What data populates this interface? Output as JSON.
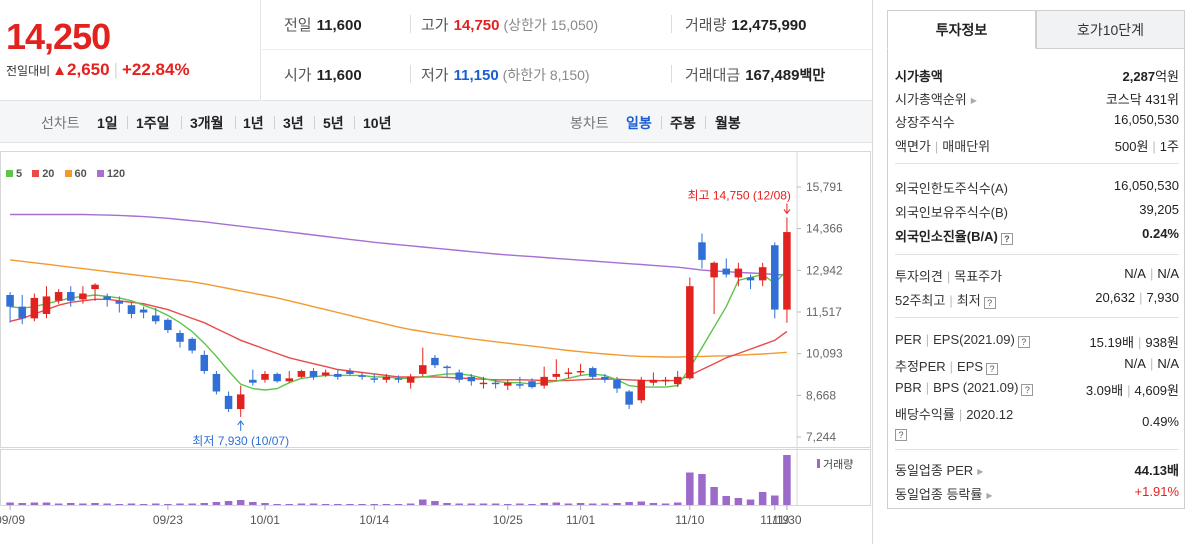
{
  "price": {
    "current": "14,250",
    "diff_label": "전일대비",
    "diff_arrow": "▲",
    "diff_value": "2,650",
    "diff_pct": "+22.84%"
  },
  "summary": {
    "prev_label": "전일",
    "prev_value": "11,600",
    "high_label": "고가",
    "high_value": "14,750",
    "upper_limit": "(상한가 15,050)",
    "volume_label": "거래량",
    "volume_value": "12,475,990",
    "open_label": "시가",
    "open_value": "11,600",
    "low_label": "저가",
    "low_value": "11,150",
    "lower_limit": "(하한가 8,150)",
    "amount_label": "거래대금",
    "amount_value": "167,489",
    "amount_unit": "백만"
  },
  "period_bar": {
    "line_label": "선차트",
    "periods": [
      "1일",
      "1주일",
      "3개월",
      "1년",
      "3년",
      "5년",
      "10년"
    ],
    "candle_label": "봉차트",
    "candles": [
      "일봉",
      "주봉",
      "월봉"
    ],
    "active_candle": "일봉"
  },
  "chart_data": {
    "type": "candlestick",
    "legend": [
      {
        "name": "5",
        "color": "#5ec44a"
      },
      {
        "name": "20",
        "color": "#ea4a4a"
      },
      {
        "name": "60",
        "color": "#f29a2e"
      },
      {
        "name": "120",
        "color": "#a56fd3"
      }
    ],
    "y_ticks": [
      "15,791",
      "14,366",
      "12,942",
      "11,517",
      "10,093",
      "8,668",
      "7,244"
    ],
    "y_range": [
      7244,
      15791
    ],
    "x_ticks": [
      "09/09",
      "09/23",
      "10/01",
      "10/14",
      "10/25",
      "11/01",
      "11/10",
      "11/19",
      "11/30"
    ],
    "high_annotation": "최고 14,750 (12/08)",
    "low_annotation": "최저 7,930 (10/07)",
    "volume_label": "거래량",
    "up_color": "#e2221f",
    "down_color": "#2f6fd6",
    "volume_color": "#9c6bc9",
    "candles": [
      [
        12100,
        11700,
        12200,
        11150
      ],
      [
        11700,
        11300,
        12100,
        11100
      ],
      [
        11300,
        12000,
        12150,
        11200
      ],
      [
        11450,
        12050,
        12400,
        11300
      ],
      [
        11900,
        12200,
        12300,
        11800
      ],
      [
        12200,
        11900,
        12400,
        11700
      ],
      [
        11950,
        12150,
        12400,
        11800
      ],
      [
        12300,
        12450,
        12500,
        11900
      ],
      [
        12050,
        11950,
        12150,
        11700
      ],
      [
        11900,
        11800,
        12050,
        11500
      ],
      [
        11750,
        11450,
        11850,
        11300
      ],
      [
        11600,
        11500,
        11700,
        11300
      ],
      [
        11400,
        11200,
        11650,
        11100
      ],
      [
        11250,
        10900,
        11300,
        10800
      ],
      [
        10800,
        10500,
        10900,
        10300
      ],
      [
        10600,
        10200,
        10650,
        10100
      ],
      [
        10050,
        9500,
        10200,
        9400
      ],
      [
        9400,
        8800,
        9500,
        8700
      ],
      [
        8650,
        8200,
        8800,
        8100
      ],
      [
        8200,
        8700,
        9000,
        7930
      ],
      [
        9200,
        9100,
        9550,
        9000
      ],
      [
        9200,
        9400,
        9500,
        9100
      ],
      [
        9400,
        9150,
        9450,
        9100
      ],
      [
        9150,
        9250,
        9500,
        9100
      ],
      [
        9300,
        9500,
        9550,
        9250
      ],
      [
        9500,
        9300,
        9600,
        9200
      ],
      [
        9350,
        9450,
        9550,
        9300
      ],
      [
        9400,
        9300,
        9550,
        9200
      ],
      [
        9500,
        9400,
        9600,
        9350
      ],
      [
        9350,
        9300,
        9450,
        9200
      ],
      [
        9250,
        9200,
        9400,
        9100
      ],
      [
        9200,
        9300,
        9400,
        9100
      ],
      [
        9250,
        9200,
        9350,
        9100
      ],
      [
        9100,
        9300,
        9400,
        8900
      ],
      [
        9400,
        9700,
        10300,
        9300
      ],
      [
        9950,
        9700,
        10050,
        9600
      ],
      [
        9650,
        9600,
        9700,
        9300
      ],
      [
        9450,
        9200,
        9550,
        9100
      ],
      [
        9300,
        9150,
        9400,
        9000
      ],
      [
        9050,
        9100,
        9300,
        8900
      ],
      [
        9100,
        9050,
        9200,
        8900
      ],
      [
        9000,
        9100,
        9200,
        8850
      ],
      [
        9050,
        9000,
        9300,
        8900
      ],
      [
        9150,
        8950,
        9250,
        8900
      ],
      [
        9000,
        9300,
        9650,
        8900
      ],
      [
        9300,
        9400,
        9900,
        9200
      ],
      [
        9400,
        9450,
        9600,
        9250
      ],
      [
        9450,
        9500,
        9750,
        9350
      ],
      [
        9600,
        9300,
        9650,
        9200
      ],
      [
        9300,
        9200,
        9400,
        9100
      ],
      [
        9200,
        8900,
        9300,
        8750
      ],
      [
        8800,
        8350,
        8850,
        8200
      ],
      [
        8500,
        9200,
        9300,
        8400
      ],
      [
        9100,
        9200,
        9450,
        9000
      ],
      [
        9150,
        9200,
        9300,
        9000
      ],
      [
        9050,
        9300,
        9500,
        8950
      ],
      [
        9250,
        12400,
        12700,
        9200
      ],
      [
        13900,
        13300,
        14200,
        13000
      ],
      [
        12700,
        13200,
        13250,
        11450
      ],
      [
        13000,
        12800,
        13350,
        12700
      ],
      [
        12700,
        13000,
        13200,
        12400
      ],
      [
        12700,
        12600,
        12800,
        12300
      ],
      [
        12600,
        13050,
        13200,
        12400
      ],
      [
        13800,
        11600,
        13900,
        11300
      ],
      [
        11600,
        14250,
        14750,
        11150
      ]
    ],
    "volumes": [
      0.05,
      0.04,
      0.05,
      0.05,
      0.03,
      0.04,
      0.03,
      0.04,
      0.03,
      0.02,
      0.03,
      0.02,
      0.03,
      0.02,
      0.03,
      0.03,
      0.04,
      0.06,
      0.08,
      0.1,
      0.06,
      0.04,
      0.02,
      0.02,
      0.03,
      0.03,
      0.02,
      0.02,
      0.02,
      0.02,
      0.02,
      0.02,
      0.02,
      0.03,
      0.11,
      0.08,
      0.04,
      0.03,
      0.03,
      0.03,
      0.03,
      0.02,
      0.03,
      0.02,
      0.04,
      0.05,
      0.03,
      0.04,
      0.03,
      0.03,
      0.04,
      0.06,
      0.07,
      0.04,
      0.03,
      0.05,
      0.65,
      0.62,
      0.36,
      0.18,
      0.14,
      0.11,
      0.26,
      0.19,
      1.0
    ],
    "ma5": [
      11700,
      11650,
      11700,
      11800,
      11900,
      12000,
      12050,
      12100,
      12050,
      12000,
      11900,
      11750,
      11600,
      11400,
      11150,
      10850,
      10450,
      10000,
      9500,
      9050,
      8900,
      8850,
      8900,
      9100,
      9250,
      9300,
      9350,
      9350,
      9350,
      9350,
      9300,
      9300,
      9250,
      9250,
      9300,
      9350,
      9400,
      9400,
      9350,
      9250,
      9150,
      9100,
      9100,
      9050,
      9100,
      9150,
      9250,
      9350,
      9400,
      9350,
      9200,
      9000,
      8950,
      8950,
      8950,
      9000,
      9600,
      10300,
      11000,
      11700,
      12600,
      12700,
      12800,
      12500,
      12950
    ],
    "ma20": [
      11200,
      11300,
      11450,
      11600,
      11750,
      11850,
      11900,
      11950,
      11950,
      11900,
      11850,
      11800,
      11700,
      11600,
      11450,
      11300,
      11150,
      10950,
      10750,
      10550,
      10400,
      10250,
      10100,
      9950,
      9850,
      9750,
      9650,
      9550,
      9500,
      9450,
      9400,
      9350,
      9300,
      9300,
      9300,
      9300,
      9280,
      9260,
      9240,
      9220,
      9200,
      9200,
      9200,
      9190,
      9180,
      9170,
      9180,
      9200,
      9220,
      9230,
      9220,
      9200,
      9180,
      9170,
      9170,
      9180,
      9350,
      9550,
      9750,
      9950,
      10100,
      10250,
      10400,
      10550,
      10850
    ],
    "ma60": [
      13300,
      13250,
      13200,
      13150,
      13100,
      13050,
      13000,
      12950,
      12900,
      12850,
      12800,
      12750,
      12700,
      12650,
      12600,
      12550,
      12480,
      12400,
      12320,
      12240,
      12160,
      12080,
      12000,
      11900,
      11800,
      11700,
      11600,
      11500,
      11400,
      11300,
      11200,
      11100,
      11000,
      10920,
      10850,
      10780,
      10720,
      10660,
      10600,
      10550,
      10500,
      10450,
      10400,
      10350,
      10300,
      10250,
      10200,
      10160,
      10120,
      10080,
      10050,
      10020,
      10000,
      9990,
      9980,
      9980,
      9990,
      10000,
      10010,
      10020,
      10040,
      10060,
      10080,
      10110,
      10140
    ],
    "ma120": [
      14850,
      14850,
      14850,
      14850,
      14850,
      14850,
      14850,
      14840,
      14830,
      14820,
      14800,
      14780,
      14750,
      14720,
      14680,
      14640,
      14600,
      14550,
      14500,
      14450,
      14400,
      14350,
      14300,
      14250,
      14200,
      14150,
      14100,
      14050,
      14000,
      13950,
      13900,
      13860,
      13820,
      13780,
      13740,
      13700,
      13660,
      13620,
      13580,
      13540,
      13500,
      13470,
      13440,
      13410,
      13380,
      13350,
      13320,
      13290,
      13260,
      13230,
      13200,
      13170,
      13140,
      13110,
      13080,
      13050,
      13000,
      12950,
      12920,
      12900,
      12870,
      12850,
      12830,
      12800,
      12780
    ]
  },
  "right_panel": {
    "tab_invest": "투자정보",
    "tab_orderbook": "호가10단계",
    "market_cap_label": "시가총액",
    "market_cap_value": "2,287",
    "market_cap_unit": "억원",
    "market_rank_label": "시가총액순위",
    "market_rank_value": "코스닥 431위",
    "listed_shares_label": "상장주식수",
    "listed_shares_value": "16,050,530",
    "par_label": "액면가",
    "trade_unit_label": "매매단위",
    "par_value": "500원",
    "trade_unit_value": "1주",
    "foreign_limit_label": "외국인한도주식수(A)",
    "foreign_limit_value": "16,050,530",
    "foreign_hold_label": "외국인보유주식수(B)",
    "foreign_hold_value": "39,205",
    "foreign_ratio_label": "외국인소진율(B/A)",
    "foreign_ratio_value": "0.24%",
    "opinion_label": "투자의견",
    "target_label": "목표주가",
    "opinion_value": "N/A",
    "target_value": "N/A",
    "w52_high_label": "52주최고",
    "w52_low_label": "최저",
    "w52_high_value": "20,632",
    "w52_low_value": "7,930",
    "per_label": "PER",
    "eps_label": "EPS(2021.09)",
    "per_value": "15.19배",
    "eps_value": "938원",
    "est_per_label": "추정PER",
    "est_eps_label": "EPS",
    "est_per_value": "N/A",
    "est_eps_value": "N/A",
    "pbr_label": "PBR",
    "bps_label": "BPS (2021.09)",
    "pbr_value": "3.09배",
    "bps_value": "4,609원",
    "dividend_label": "배당수익률",
    "dividend_year": "2020.12",
    "dividend_value": "0.49%",
    "sector_per_label": "동일업종 PER",
    "sector_per_value": "44.13배",
    "sector_change_label": "동일업종 등락률",
    "sector_change_value": "+1.91%"
  }
}
